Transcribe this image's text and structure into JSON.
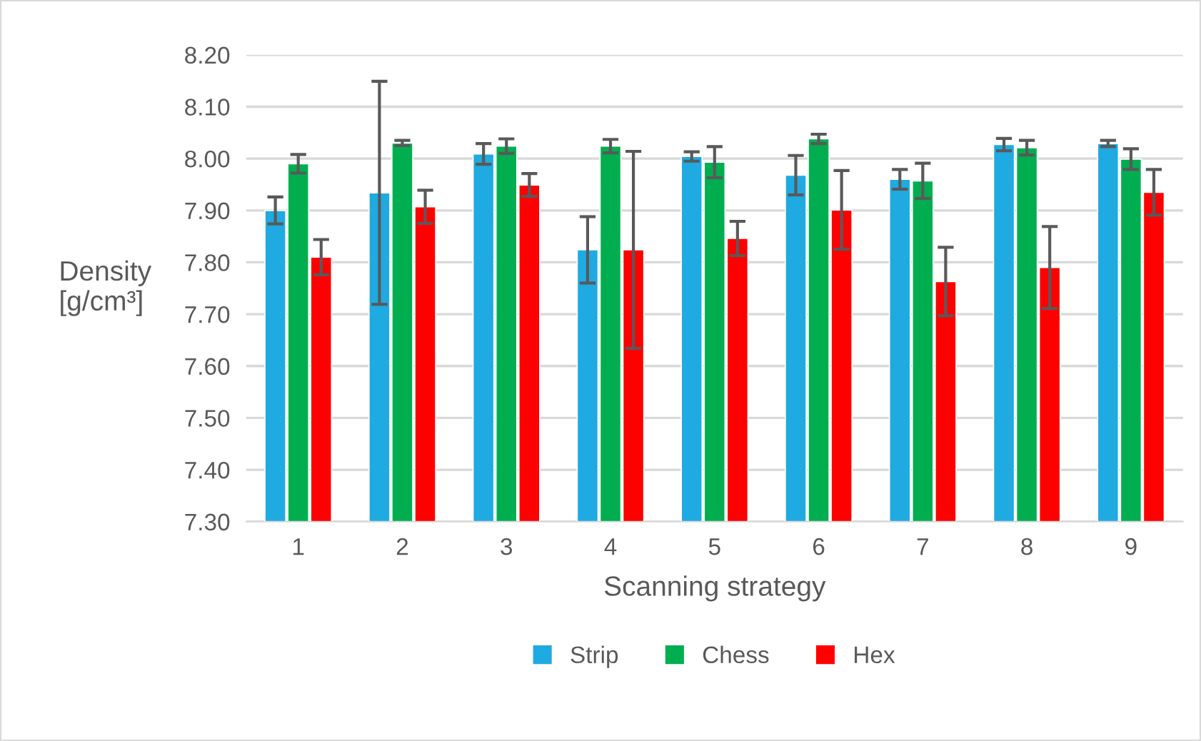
{
  "chart_data": {
    "type": "bar",
    "xlabel": "Scanning strategy",
    "ylabel": "Density\n[g/cm³]",
    "categories": [
      "1",
      "2",
      "3",
      "4",
      "5",
      "6",
      "7",
      "8",
      "9"
    ],
    "series": [
      {
        "name": "Strip",
        "color": "#1faae1",
        "values": [
          7.9,
          7.934,
          8.009,
          7.824,
          8.004,
          7.968,
          7.96,
          8.027,
          8.029
        ],
        "errors": [
          0.026,
          0.215,
          0.02,
          0.064,
          0.009,
          0.038,
          0.019,
          0.012,
          0.006
        ]
      },
      {
        "name": "Chess",
        "color": "#00ae50",
        "values": [
          7.99,
          8.03,
          8.024,
          8.024,
          7.993,
          8.038,
          7.957,
          8.021,
          7.999
        ],
        "errors": [
          0.018,
          0.005,
          0.014,
          0.013,
          0.03,
          0.009,
          0.034,
          0.014,
          0.02
        ]
      },
      {
        "name": "Hex",
        "color": "#ff0000",
        "values": [
          7.81,
          7.907,
          7.949,
          7.824,
          7.846,
          7.901,
          7.763,
          7.79,
          7.935
        ],
        "errors": [
          0.034,
          0.032,
          0.022,
          0.19,
          0.033,
          0.076,
          0.066,
          0.079,
          0.044
        ]
      }
    ],
    "ylim": [
      7.3,
      8.2
    ],
    "yticks": [
      {
        "value": 7.3,
        "label": "7.30"
      },
      {
        "value": 7.4,
        "label": "7.40"
      },
      {
        "value": 7.5,
        "label": "7.50"
      },
      {
        "value": 7.6,
        "label": "7.60"
      },
      {
        "value": 7.7,
        "label": "7.70"
      },
      {
        "value": 7.8,
        "label": "7.80"
      },
      {
        "value": 7.9,
        "label": "7.90"
      },
      {
        "value": 8.0,
        "label": "8.00"
      },
      {
        "value": 8.1,
        "label": "8.10"
      },
      {
        "value": 8.2,
        "label": "8.20"
      }
    ],
    "grid": "y",
    "legend": "bottom"
  }
}
